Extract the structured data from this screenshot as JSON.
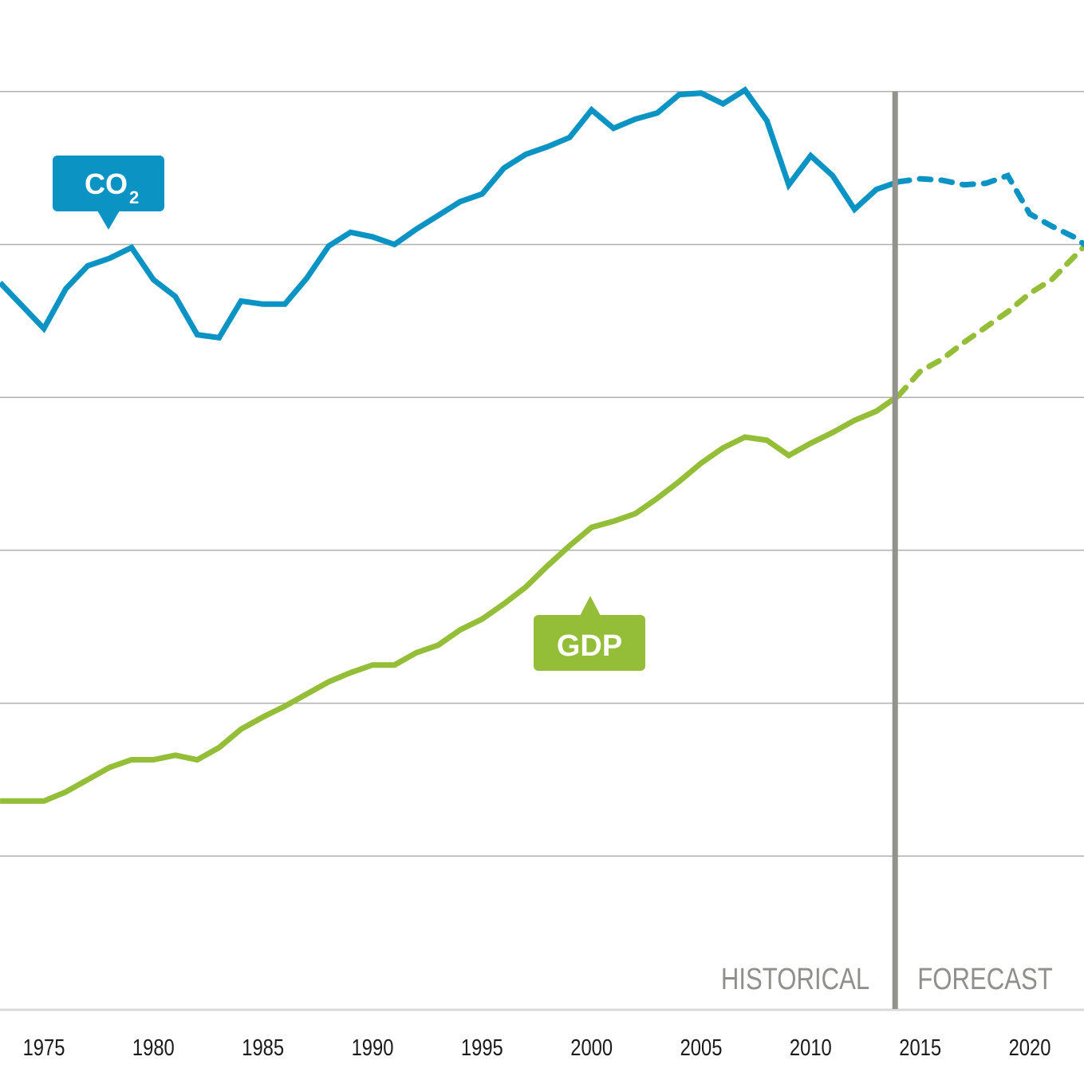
{
  "chart_data": {
    "type": "line",
    "title": "",
    "xlabel": "",
    "ylabel": "",
    "x_ticks": [
      "1975",
      "1980",
      "1985",
      "1990",
      "1995",
      "2000",
      "2005",
      "2010",
      "2015",
      "2020"
    ],
    "xlim": [
      1973,
      2022.5
    ],
    "ylim": [
      0,
      6.6
    ],
    "y_gridlines": [
      1,
      2,
      3,
      4,
      5,
      6
    ],
    "y_tick_labels_visible": false,
    "grid": true,
    "forecast_start": 2014,
    "region_labels": {
      "historical": "HISTORICAL",
      "forecast": "FORECAST"
    },
    "colors": {
      "co2": "#0a93c3",
      "gdp": "#94bd38",
      "divider": "#93938d",
      "grid": "#b0b0b0",
      "axis": "#dadada"
    },
    "series": [
      {
        "name": "CO2",
        "label_main": "CO",
        "label_sub": "2",
        "color": "#0a93c3",
        "historical": {
          "x": [
            1973,
            1975,
            1976,
            1977,
            1978,
            1979,
            1980,
            1981,
            1982,
            1983,
            1984,
            1985,
            1986,
            1987,
            1988,
            1989,
            1990,
            1991,
            1992,
            1993,
            1994,
            1995,
            1996,
            1997,
            1998,
            1999,
            2000,
            2001,
            2002,
            2003,
            2004,
            2005,
            2006,
            2007,
            2008,
            2009,
            2010,
            2011,
            2012,
            2013,
            2014
          ],
          "y": [
            4.75,
            4.45,
            4.71,
            4.86,
            4.91,
            4.98,
            4.77,
            4.66,
            4.41,
            4.39,
            4.63,
            4.61,
            4.61,
            4.78,
            4.99,
            5.08,
            5.05,
            5.0,
            5.1,
            5.19,
            5.28,
            5.33,
            5.5,
            5.59,
            5.64,
            5.7,
            5.88,
            5.76,
            5.82,
            5.86,
            5.98,
            5.99,
            5.92,
            6.01,
            5.81,
            5.39,
            5.58,
            5.45,
            5.23,
            5.36,
            5.41
          ]
        },
        "forecast": {
          "x": [
            2014,
            2015,
            2016,
            2017,
            2018,
            2019,
            2020,
            2021,
            2022,
            2022.5
          ],
          "y": [
            5.41,
            5.43,
            5.42,
            5.39,
            5.4,
            5.45,
            5.2,
            5.12,
            5.05,
            5.0
          ]
        }
      },
      {
        "name": "GDP",
        "label_main": "GDP",
        "label_sub": "",
        "color": "#94bd38",
        "historical": {
          "x": [
            1973,
            1975,
            1976,
            1977,
            1978,
            1979,
            1980,
            1981,
            1982,
            1983,
            1984,
            1985,
            1986,
            1987,
            1988,
            1989,
            1990,
            1991,
            1992,
            1993,
            1994,
            1995,
            1996,
            1997,
            1998,
            1999,
            2000,
            2001,
            2002,
            2003,
            2004,
            2005,
            2006,
            2007,
            2008,
            2009,
            2010,
            2011,
            2012,
            2013,
            2014
          ],
          "y": [
            1.36,
            1.36,
            1.42,
            1.5,
            1.58,
            1.63,
            1.63,
            1.66,
            1.63,
            1.71,
            1.83,
            1.91,
            1.98,
            2.06,
            2.14,
            2.2,
            2.25,
            2.25,
            2.33,
            2.38,
            2.48,
            2.55,
            2.65,
            2.76,
            2.9,
            3.03,
            3.15,
            3.19,
            3.24,
            3.34,
            3.45,
            3.57,
            3.67,
            3.74,
            3.72,
            3.62,
            3.7,
            3.77,
            3.85,
            3.91,
            4.01
          ]
        },
        "forecast": {
          "x": [
            2014,
            2015,
            2016,
            2017,
            2018,
            2019,
            2020,
            2021,
            2022.5
          ],
          "y": [
            4.01,
            4.17,
            4.25,
            4.36,
            4.46,
            4.56,
            4.68,
            4.77,
            4.99
          ]
        }
      }
    ]
  }
}
